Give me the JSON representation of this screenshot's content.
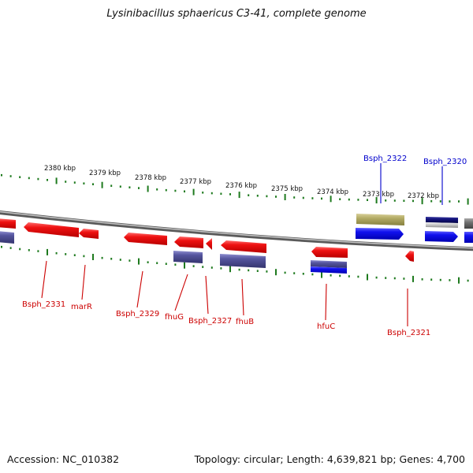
{
  "title": "Lysinibacillus sphaericus C3-41, complete genome",
  "footer": {
    "accession": "Accession: NC_010382",
    "topology": "Topology: circular; Length: 4,639,821 bp; Genes: 4,700"
  },
  "colors": {
    "forward_gene": "#ee0000",
    "reverse_gene": "#0000ee",
    "slate_gene": "#4a4a99",
    "olive_gene": "#b0a860",
    "navy_gene": "#10107a",
    "gray_gene": "#6f6f6f",
    "backbone": "#8a8a8a",
    "ticks": "#1e7a1e",
    "label_red": "#cc0000",
    "label_blue": "#0000cc"
  },
  "kbp_ticks": [
    "2380 kbp",
    "2379 kbp",
    "2378 kbp",
    "2377 kbp",
    "2376 kbp",
    "2375 kbp",
    "2374 kbp",
    "2373 kbp",
    "2372 kbp"
  ],
  "gene_labels": [
    {
      "text": "Bsph_2322",
      "color": "blue"
    },
    {
      "text": "Bsph_2320",
      "color": "blue"
    },
    {
      "text": "Bsph_2331",
      "color": "red"
    },
    {
      "text": "marR",
      "color": "red"
    },
    {
      "text": "Bsph_2329",
      "color": "red"
    },
    {
      "text": "fhuG",
      "color": "red"
    },
    {
      "text": "Bsph_2327",
      "color": "red"
    },
    {
      "text": "fhuB",
      "color": "red"
    },
    {
      "text": "hfuC",
      "color": "red"
    },
    {
      "text": "Bsph_2321",
      "color": "red"
    }
  ]
}
